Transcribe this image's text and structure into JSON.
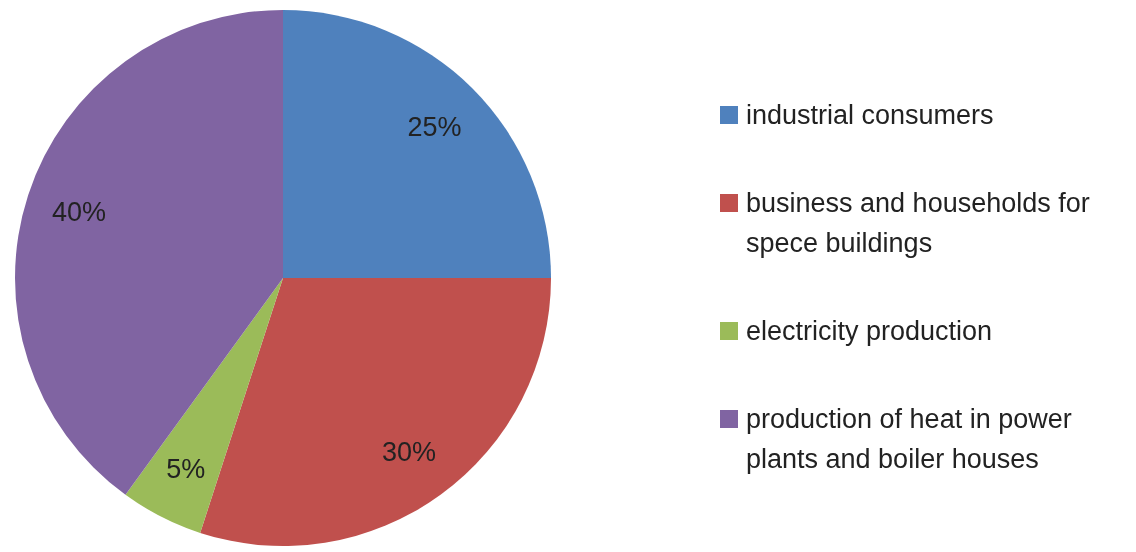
{
  "chart_data": {
    "type": "pie",
    "categories": [
      "industrial consumers",
      "business and households for spece buildings",
      "electricity production",
      "production of heat in power plants and boiler houses"
    ],
    "values": [
      25,
      30,
      5,
      40
    ],
    "colors": [
      "#4f81bd",
      "#c0504d",
      "#9bbb59",
      "#8064a2"
    ],
    "value_labels": [
      "25%",
      "30%",
      "5%",
      "40%"
    ],
    "legend": "right"
  }
}
